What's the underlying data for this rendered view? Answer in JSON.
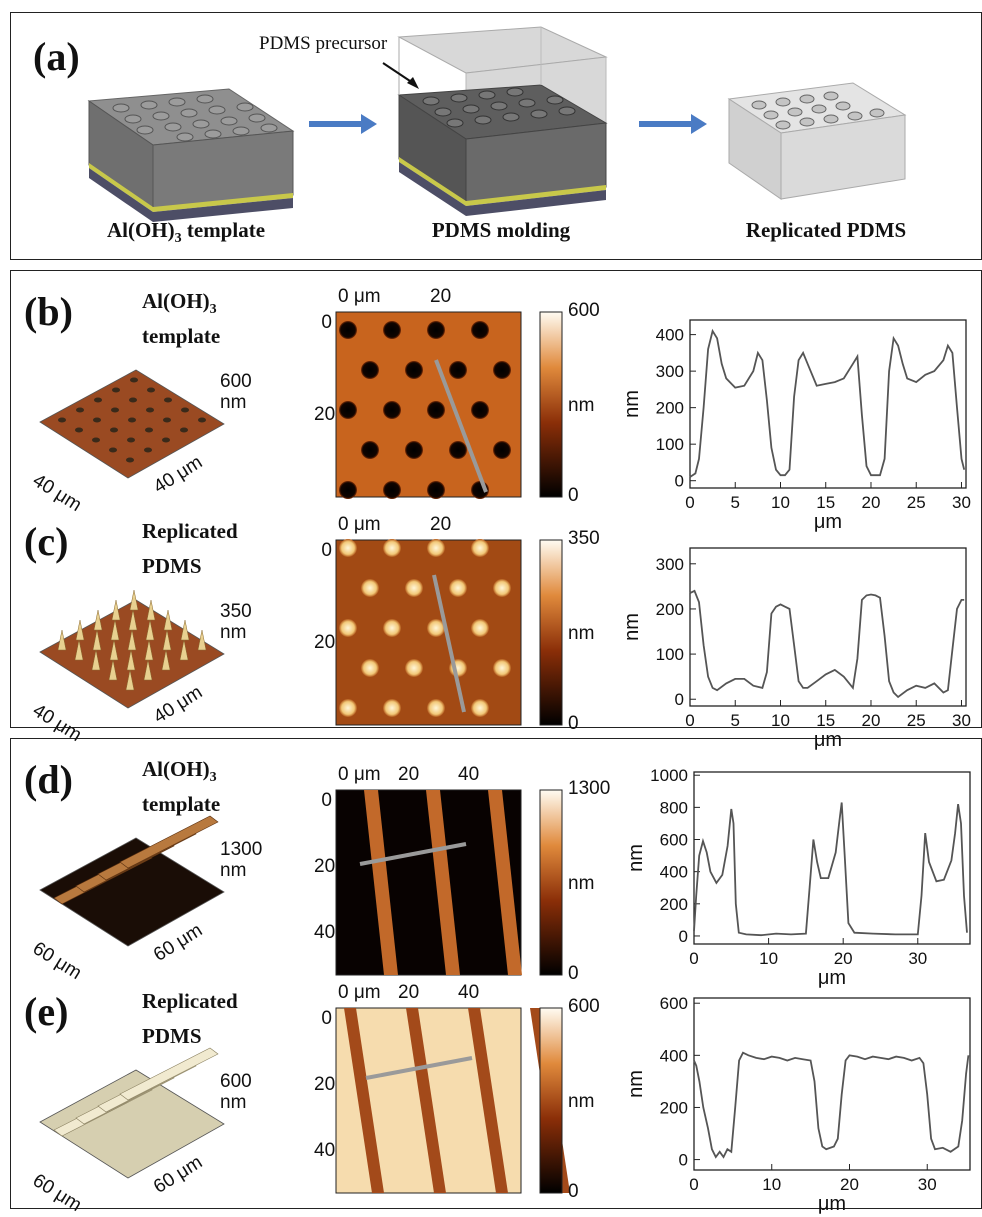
{
  "panel_a": {
    "label": "(a)",
    "precursor_label": "PDMS precursor",
    "captions": {
      "template": "Al(OH)",
      "template_sub": "3",
      "template_suffix": " template",
      "molding": "PDMS molding",
      "replicated": "Replicated PDMS"
    }
  },
  "rows": [
    {
      "label": "(b)",
      "material_l1": "Al(OH)",
      "material_sub": "3",
      "material_l2": "template",
      "z_label": "600",
      "z_unit": "nm",
      "dim1": "40 μm",
      "dim2": "40 μm",
      "afm": {
        "x_ticks": [
          "0 μm",
          "20"
        ],
        "y_ticks": [
          "0",
          "20"
        ],
        "scale_max": "600",
        "scale_min": "0",
        "scale_unit": "nm"
      }
    },
    {
      "label": "(c)",
      "material_l1": "Replicated",
      "material_sub": "",
      "material_l2": "PDMS",
      "z_label": "350",
      "z_unit": "nm",
      "dim1": "40 μm",
      "dim2": "40 μm",
      "afm": {
        "x_ticks": [
          "0 μm",
          "20"
        ],
        "y_ticks": [
          "0",
          "20"
        ],
        "scale_max": "350",
        "scale_min": "0",
        "scale_unit": "nm"
      }
    },
    {
      "label": "(d)",
      "material_l1": "Al(OH)",
      "material_sub": "3",
      "material_l2": "template",
      "z_label": "1300",
      "z_unit": "nm",
      "dim1": "60 μm",
      "dim2": "60 μm",
      "afm": {
        "x_ticks": [
          "0 μm",
          "20",
          "40"
        ],
        "y_ticks": [
          "0",
          "20",
          "40"
        ],
        "scale_max": "1300",
        "scale_min": "0",
        "scale_unit": "nm"
      }
    },
    {
      "label": "(e)",
      "material_l1": "Replicated",
      "material_sub": "",
      "material_l2": "PDMS",
      "z_label": "600",
      "z_unit": "nm",
      "dim1": "60 μm",
      "dim2": "60 μm",
      "afm": {
        "x_ticks": [
          "0 μm",
          "20",
          "40"
        ],
        "y_ticks": [
          "0",
          "20",
          "40"
        ],
        "scale_max": "600",
        "scale_min": "0",
        "scale_unit": "nm"
      }
    }
  ],
  "chart_data": [
    {
      "type": "line",
      "id": "b",
      "xlabel": "μm",
      "ylabel": "nm",
      "xlim": [
        0,
        30.5
      ],
      "ylim": [
        -20,
        440
      ],
      "xticks": [
        0,
        5,
        10,
        15,
        20,
        25,
        30
      ],
      "yticks": [
        0,
        100,
        200,
        300,
        400
      ],
      "x": [
        0,
        0.6,
        1.0,
        1.5,
        2.0,
        2.5,
        3.0,
        3.5,
        4.0,
        5.0,
        6.0,
        7.0,
        7.5,
        8.0,
        8.5,
        9.0,
        9.5,
        10.0,
        10.5,
        11.0,
        11.5,
        12.0,
        12.5,
        13.0,
        14.0,
        15.0,
        16.0,
        17.0,
        18.0,
        18.5,
        19.0,
        19.5,
        20.0,
        20.5,
        21.0,
        21.5,
        22.0,
        22.5,
        23.0,
        23.5,
        24.0,
        25.0,
        26.0,
        27.0,
        28.0,
        28.5,
        29.0,
        29.5,
        30.0,
        30.3
      ],
      "y": [
        10,
        20,
        60,
        200,
        360,
        410,
        390,
        320,
        280,
        255,
        260,
        300,
        350,
        330,
        220,
        90,
        30,
        15,
        15,
        30,
        230,
        330,
        350,
        320,
        260,
        265,
        270,
        280,
        320,
        340,
        180,
        40,
        15,
        15,
        15,
        60,
        300,
        390,
        370,
        320,
        280,
        270,
        290,
        300,
        330,
        370,
        350,
        200,
        60,
        30
      ]
    },
    {
      "type": "line",
      "id": "c",
      "xlabel": "μm",
      "ylabel": "nm",
      "xlim": [
        0,
        30.5
      ],
      "ylim": [
        -15,
        335
      ],
      "xticks": [
        0,
        5,
        10,
        15,
        20,
        25,
        30
      ],
      "yticks": [
        0,
        100,
        200,
        300
      ],
      "x": [
        0,
        0.5,
        1.0,
        1.5,
        2.0,
        2.5,
        3.0,
        4.0,
        5.0,
        6.0,
        7.0,
        8.0,
        8.5,
        9.0,
        9.5,
        10.0,
        10.5,
        11.0,
        11.5,
        12.0,
        12.5,
        13.0,
        14.0,
        15.0,
        16.0,
        17.0,
        18.0,
        18.5,
        19.0,
        19.5,
        20.0,
        20.5,
        21.0,
        21.5,
        22.0,
        22.5,
        23.0,
        24.0,
        25.0,
        26.0,
        27.0,
        28.0,
        28.5,
        29.0,
        29.5,
        30.0,
        30.3
      ],
      "y": [
        235,
        240,
        215,
        120,
        50,
        25,
        20,
        35,
        45,
        45,
        30,
        25,
        60,
        190,
        205,
        210,
        205,
        200,
        120,
        40,
        25,
        25,
        40,
        55,
        65,
        50,
        25,
        90,
        220,
        230,
        232,
        230,
        225,
        140,
        40,
        15,
        5,
        20,
        30,
        25,
        35,
        15,
        20,
        110,
        200,
        220,
        220
      ]
    },
    {
      "type": "line",
      "id": "d",
      "xlabel": "μm",
      "ylabel": "nm",
      "xlim": [
        0,
        37
      ],
      "ylim": [
        -50,
        1020
      ],
      "xticks": [
        0,
        10,
        20,
        30
      ],
      "yticks": [
        0,
        200,
        400,
        600,
        800,
        1000
      ],
      "x": [
        0,
        0.3,
        0.7,
        1.2,
        1.7,
        2.2,
        3.0,
        3.8,
        4.5,
        5.0,
        5.3,
        5.6,
        6.0,
        7.0,
        9.0,
        11.0,
        13.0,
        15.0,
        15.5,
        16.0,
        16.5,
        17.0,
        18.0,
        19.0,
        19.5,
        19.8,
        20.2,
        20.7,
        21.5,
        24.0,
        27.0,
        30.0,
        30.5,
        31.0,
        31.5,
        32.5,
        33.5,
        34.5,
        35.0,
        35.4,
        35.8,
        36.2,
        36.6
      ],
      "y": [
        30,
        250,
        500,
        590,
        520,
        400,
        330,
        380,
        560,
        790,
        700,
        200,
        20,
        10,
        5,
        15,
        10,
        15,
        300,
        600,
        460,
        360,
        360,
        520,
        720,
        830,
        500,
        80,
        20,
        15,
        10,
        10,
        250,
        640,
        460,
        340,
        350,
        470,
        640,
        820,
        700,
        250,
        20
      ]
    },
    {
      "type": "line",
      "id": "e",
      "xlabel": "μm",
      "ylabel": "nm",
      "xlim": [
        0,
        35.5
      ],
      "ylim": [
        -40,
        620
      ],
      "xticks": [
        0,
        10,
        20,
        30
      ],
      "yticks": [
        0,
        200,
        400,
        600
      ],
      "x": [
        0,
        0.3,
        0.7,
        1.2,
        1.8,
        2.3,
        2.8,
        3.3,
        3.8,
        4.3,
        4.8,
        5.3,
        5.8,
        6.3,
        7.0,
        8.0,
        9.0,
        10.0,
        11.0,
        12.0,
        13.0,
        14.0,
        15.0,
        15.5,
        16.0,
        16.5,
        17.0,
        18.0,
        18.5,
        19.0,
        19.5,
        20.0,
        21.0,
        22.0,
        23.0,
        24.0,
        25.0,
        26.0,
        27.0,
        28.0,
        29.0,
        29.5,
        30.0,
        30.5,
        31.0,
        32.0,
        33.0,
        34.0,
        34.5,
        35.0,
        35.3
      ],
      "y": [
        380,
        360,
        300,
        200,
        120,
        40,
        10,
        30,
        10,
        40,
        30,
        200,
        380,
        410,
        400,
        390,
        385,
        395,
        390,
        380,
        390,
        385,
        380,
        300,
        120,
        50,
        40,
        50,
        80,
        250,
        380,
        400,
        395,
        385,
        395,
        390,
        385,
        395,
        390,
        380,
        390,
        370,
        250,
        80,
        40,
        45,
        30,
        50,
        150,
        330,
        400
      ]
    }
  ]
}
